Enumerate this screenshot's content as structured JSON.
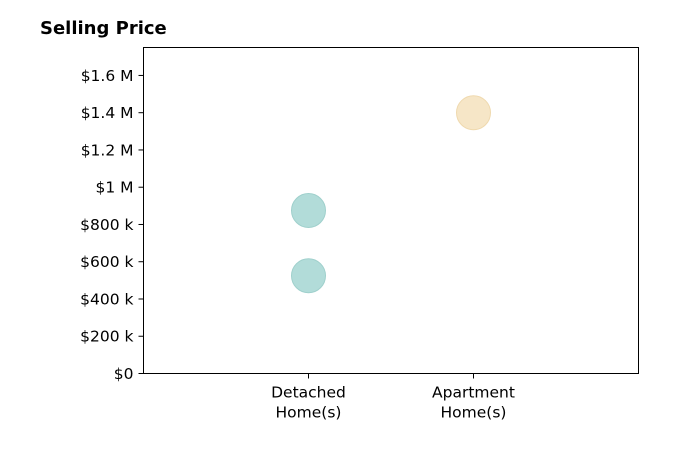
{
  "chart_data": {
    "type": "scatter",
    "title": "Selling Price",
    "xlabel": "",
    "ylabel": "",
    "categories": [
      [
        "Detached",
        "Home(s)"
      ],
      [
        "Apartment",
        "Home(s)"
      ]
    ],
    "y_ticks": [
      {
        "value": 0,
        "label": "$0"
      },
      {
        "value": 200000,
        "label": "$200 k"
      },
      {
        "value": 400000,
        "label": "$400 k"
      },
      {
        "value": 600000,
        "label": "$600 k"
      },
      {
        "value": 800000,
        "label": "$800 k"
      },
      {
        "value": 1000000,
        "label": "$1 M"
      },
      {
        "value": 1200000,
        "label": "$1.2 M"
      },
      {
        "value": 1400000,
        "label": "$1.4 M"
      },
      {
        "value": 1600000,
        "label": "$1.6 M"
      }
    ],
    "ylim": [
      0,
      1750000
    ],
    "xlim": [
      -1,
      2
    ],
    "grid": false,
    "points": [
      {
        "category": 0,
        "y": 875000,
        "color": "#b2dcd9"
      },
      {
        "category": 0,
        "y": 525000,
        "color": "#b2dcd9"
      },
      {
        "category": 1,
        "y": 1400000,
        "color": "#f6e6c7"
      }
    ],
    "colors": {
      "detached": "#b2dcd9",
      "detached_edge": "#9fd0cc",
      "apartment": "#f6e6c7",
      "apartment_edge": "#efd9ae"
    }
  }
}
